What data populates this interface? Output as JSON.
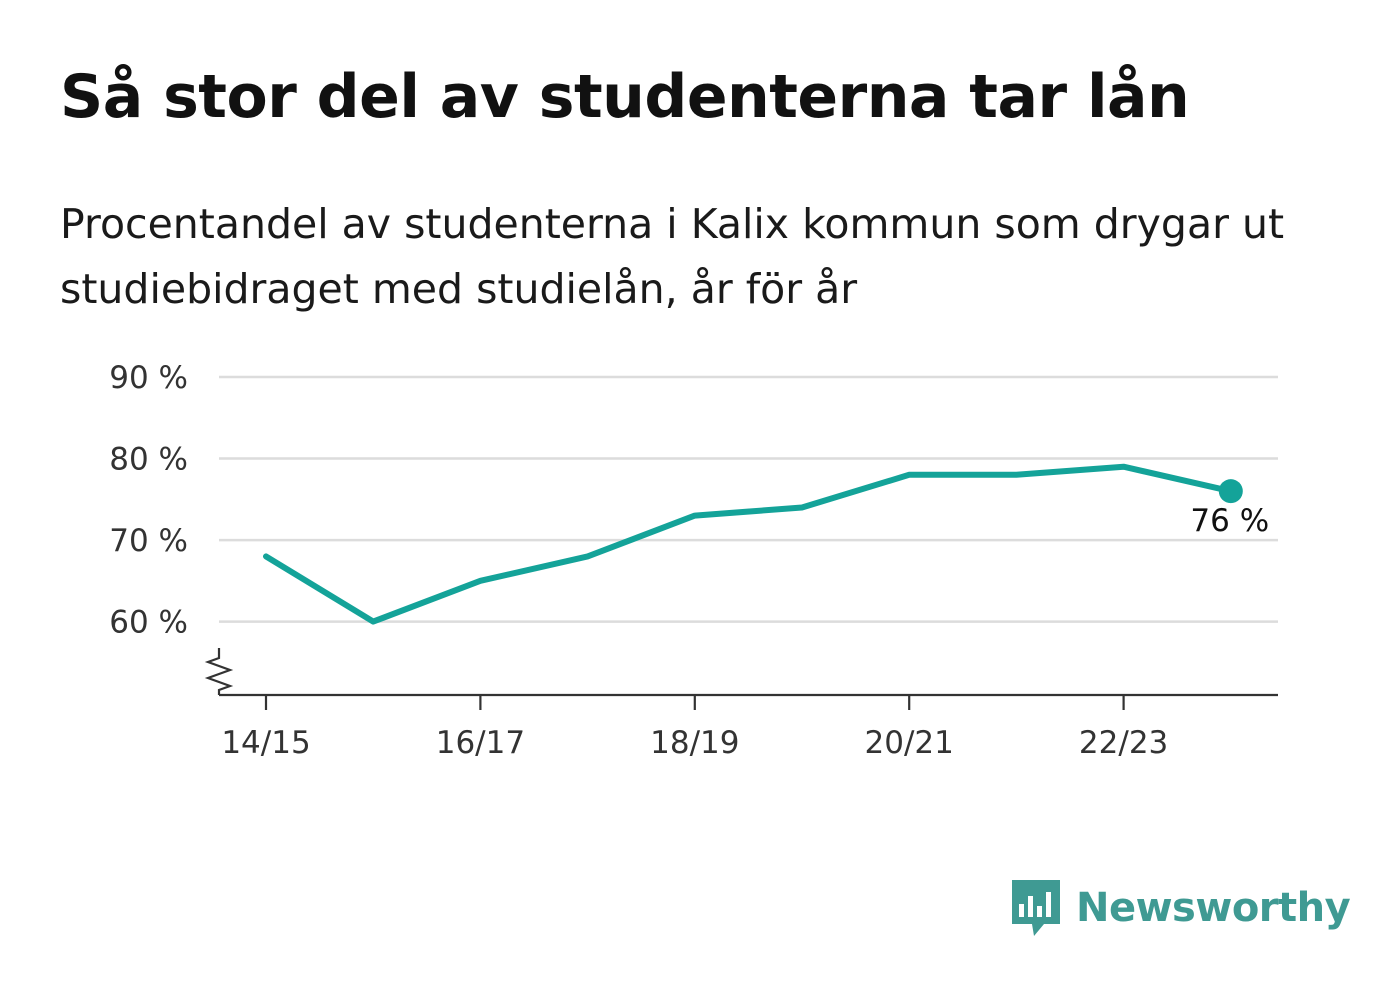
{
  "title": "Så stor del av studenterna tar lån",
  "subtitle": "Procentandel av studenterna i Kalix kommun som drygar ut studiebidraget med studielån, år för år",
  "brand": {
    "name": "Newsworthy",
    "icon": "newsworthy-logo-icon",
    "color": "#3f9a93"
  },
  "chart_data": {
    "type": "line",
    "x": [
      "14/15",
      "15/16",
      "16/17",
      "17/18",
      "18/19",
      "19/20",
      "20/21",
      "21/22",
      "22/23",
      "23/24"
    ],
    "x_tick_labels": [
      "14/15",
      "16/17",
      "18/19",
      "20/21",
      "22/23"
    ],
    "series": [
      {
        "values": [
          68,
          60,
          65,
          68,
          73,
          74,
          78,
          78,
          79,
          76
        ],
        "color": "#14a399"
      }
    ],
    "y_ticks": [
      60,
      70,
      80,
      90
    ],
    "y_tick_labels": [
      "60 %",
      "70 %",
      "80 %",
      "90 %"
    ],
    "ylim": [
      51,
      90
    ],
    "y_axis_broken": true,
    "grid": true,
    "end_label": "76 %"
  }
}
